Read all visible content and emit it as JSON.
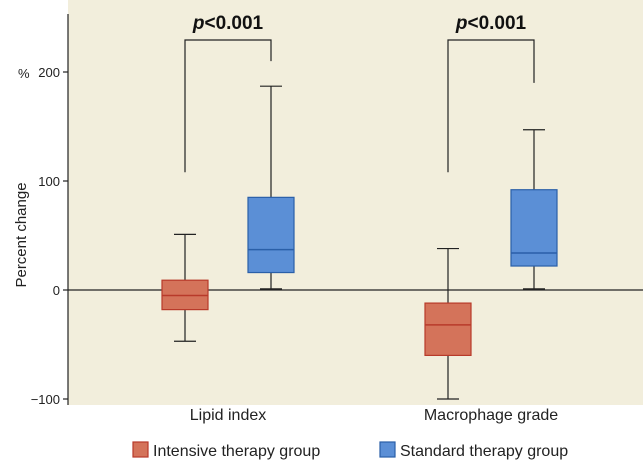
{
  "chart_data": {
    "type": "box",
    "ylabel": "Percent change",
    "yunit": "%",
    "ylim": [
      -100,
      255
    ],
    "yticks": [
      -100,
      0,
      100,
      200
    ],
    "ytick_labels": [
      "−100",
      "0",
      "100",
      "200"
    ],
    "categories": [
      "Lipid index",
      "Macrophage grade"
    ],
    "series": [
      {
        "name": "Intensive therapy group",
        "color": "#d4735a",
        "stroke": "#b83a2a",
        "boxes": [
          {
            "min": -47,
            "q1": -18,
            "median": -5,
            "q3": 9,
            "max": 51
          },
          {
            "min": -100,
            "q1": -60,
            "median": -32,
            "q3": -12,
            "max": 38
          }
        ]
      },
      {
        "name": "Standard therapy group",
        "color": "#5b8fd6",
        "stroke": "#2a5fa8",
        "boxes": [
          {
            "min": 1,
            "q1": 16,
            "median": 37,
            "q3": 85,
            "max": 187
          },
          {
            "min": 1,
            "q1": 22,
            "median": 34,
            "q3": 92,
            "max": 147
          }
        ]
      }
    ],
    "annotations": [
      {
        "label": "p<0.001",
        "left_y": 108,
        "right_y": 210
      },
      {
        "label": "p<0.001",
        "left_y": 108,
        "right_y": 190
      }
    ],
    "reference_line": 0,
    "background": "#f2eedc"
  }
}
